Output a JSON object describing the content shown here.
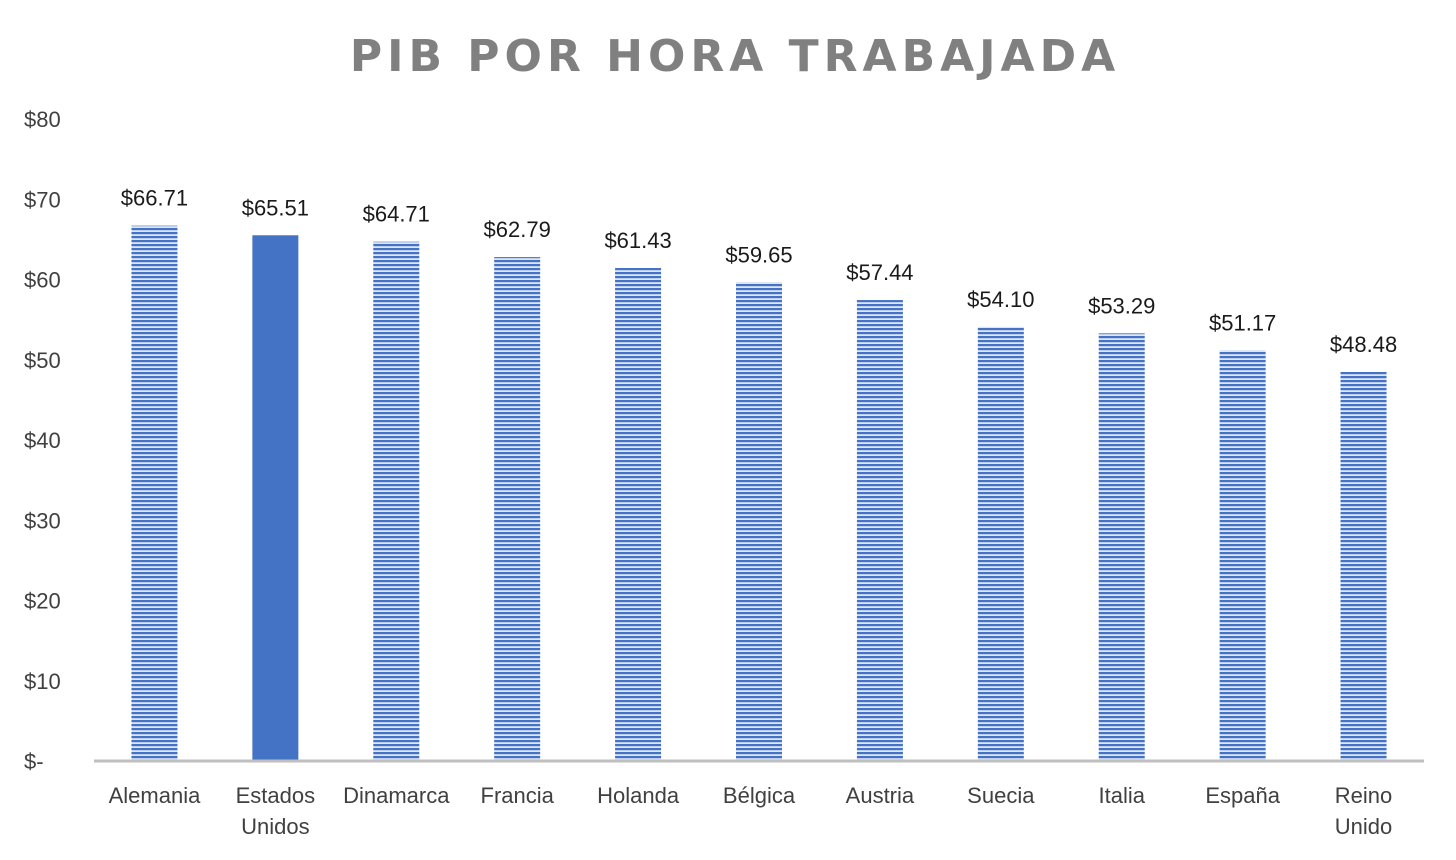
{
  "chart_data": {
    "type": "bar",
    "title": "PIB POR HORA TRABAJADA",
    "xlabel": "",
    "ylabel": "",
    "ylim": [
      0,
      80
    ],
    "yticks": [
      0,
      10,
      20,
      30,
      40,
      50,
      60,
      70,
      80
    ],
    "ytick_labels": [
      "$-",
      "$10",
      "$20",
      "$30",
      "$40",
      "$50",
      "$60",
      "$70",
      "$80"
    ],
    "categories": [
      [
        "Alemania"
      ],
      [
        "Estados",
        "Unidos"
      ],
      [
        "Dinamarca"
      ],
      [
        "Francia"
      ],
      [
        "Holanda"
      ],
      [
        "Bélgica"
      ],
      [
        "Austria"
      ],
      [
        "Suecia"
      ],
      [
        "Italia"
      ],
      [
        "España"
      ],
      [
        "Reino",
        "Unido"
      ]
    ],
    "values": [
      66.71,
      65.51,
      64.71,
      62.79,
      61.43,
      59.65,
      57.44,
      54.1,
      53.29,
      51.17,
      48.48
    ],
    "data_labels": [
      "$66.71",
      "$65.51",
      "$64.71",
      "$62.79",
      "$61.43",
      "$59.65",
      "$57.44",
      "$54.10",
      "$53.29",
      "$51.17",
      "$48.48"
    ],
    "highlight_index": 1,
    "grid": false,
    "legend": "none",
    "colors": {
      "bar": "#4472c4",
      "bar_stripe_light": "#dce6f5",
      "highlight": "#4472c4",
      "axis": "#bfbfbf",
      "title": "#808080",
      "text": "#404040",
      "data_label": "#1a1a1a"
    }
  }
}
